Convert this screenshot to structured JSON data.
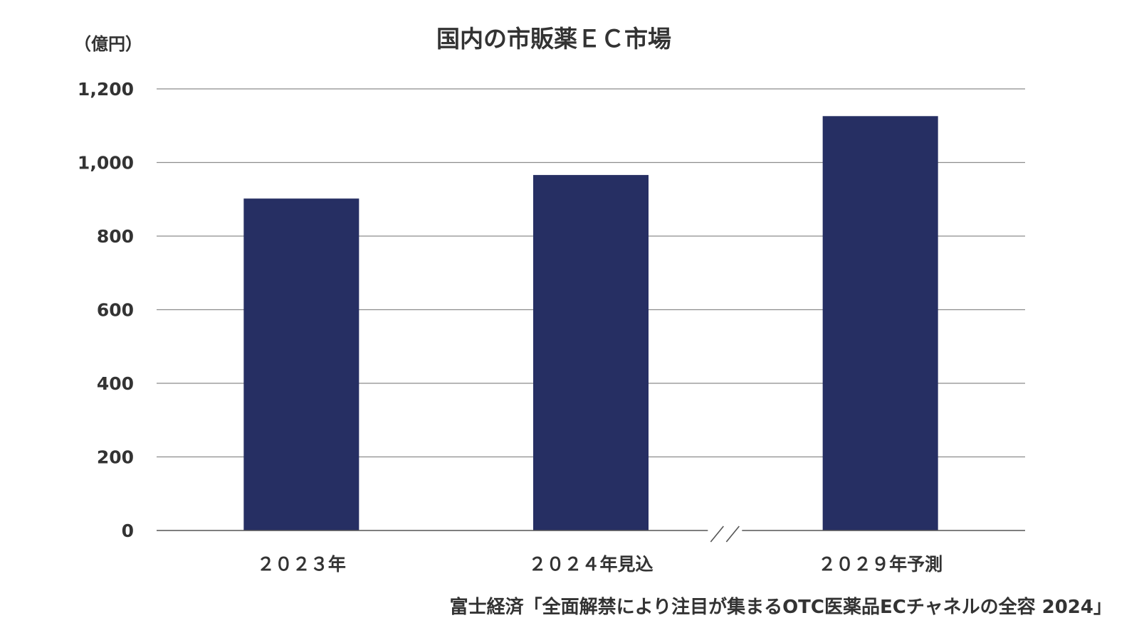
{
  "chart_data": {
    "type": "bar",
    "title": "国内の市販薬ＥＣ市場",
    "ylabel": "（億円）",
    "xlabel": "",
    "categories": [
      "２０２３年",
      "２０２４年見込",
      "２０２９年予測"
    ],
    "series": [
      {
        "values": [
          902,
          966,
          1126
        ]
      }
    ],
    "ylim": [
      0,
      1200
    ],
    "yticks": [
      0,
      200,
      400,
      600,
      800,
      1000,
      1200
    ],
    "ytick_labels": [
      "0",
      "200",
      "400",
      "600",
      "800",
      "1,000",
      "1,200"
    ],
    "grid": true,
    "axis_break_between": [
      1,
      2
    ],
    "source": "富士経済「全面解禁により注目が集まるOTC医薬品ECチャネルの全容 2024」",
    "bar_color": "#262f63",
    "grid_color": "#8c8c8c",
    "axis_color": "#555555"
  }
}
